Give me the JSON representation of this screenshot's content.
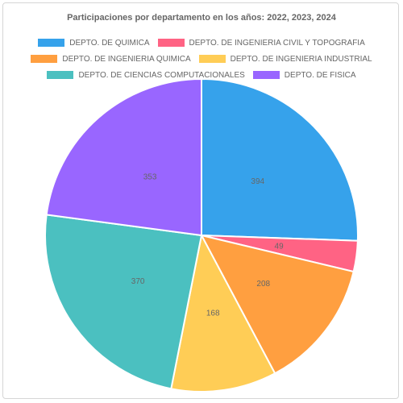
{
  "chart_data": {
    "type": "pie",
    "title": "Participaciones por departamento en los años: 2022, 2023, 2024",
    "legend_position": "top",
    "categories": [
      "DEPTO. DE QUIMICA",
      "DEPTO. DE INGENIERIA CIVIL Y TOPOGRAFIA",
      "DEPTO. DE INGENIERIA QUIMICA",
      "DEPTO. DE INGENIERIA INDUSTRIAL",
      "DEPTO. DE CIENCIAS COMPUTACIONALES",
      "DEPTO. DE FISICA"
    ],
    "values": [
      394,
      49,
      208,
      168,
      370,
      353
    ],
    "colors": [
      "#36a2eb",
      "#ff6384",
      "#ff9f40",
      "#ffcd56",
      "#4bc0c0",
      "#9966ff"
    ]
  }
}
